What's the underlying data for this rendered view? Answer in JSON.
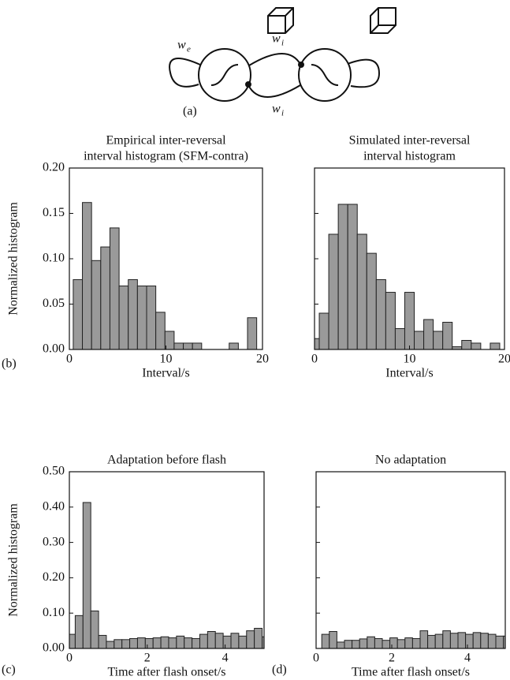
{
  "diagram": {
    "we_base": "w",
    "we_sub": "e",
    "wi_top_base": "w",
    "wi_top_sub": "i",
    "wi_bottom_base": "w",
    "wi_bottom_sub": "i"
  },
  "panel_labels": {
    "a": "(a)",
    "b": "(b)",
    "c": "(c)",
    "d": "(d)"
  },
  "chart_data": [
    {
      "type": "histogram",
      "title": [
        "Empirical inter-reversal",
        "interval histogram (SFM-contra)"
      ],
      "xlabel": "Interval/s",
      "ylabel": "Normalized histogram",
      "bins": [
        0.4,
        1.35,
        2.3,
        3.25,
        4.2,
        5.15,
        6.1,
        7.05,
        8,
        8.95,
        9.9,
        10.85,
        11.8,
        12.75,
        13.7,
        14.65,
        15.6,
        16.55,
        17.5,
        18.45,
        19.4
      ],
      "values": [
        0.077,
        0.162,
        0.098,
        0.113,
        0.134,
        0.07,
        0.077,
        0.07,
        0.07,
        0.041,
        0.02,
        0.007,
        0.007,
        0.007,
        0,
        0,
        0,
        0.007,
        0,
        0.035
      ],
      "color": "#9a9a9a",
      "xlim": [
        0,
        20
      ],
      "ylim": [
        0,
        0.2
      ],
      "xticks": [
        0,
        10,
        20
      ],
      "yticks": [
        {
          "value": 0,
          "label": "0.00"
        },
        {
          "value": 0.05,
          "label": "0.05"
        },
        {
          "value": 0.1,
          "label": "0.10"
        },
        {
          "value": 0.15,
          "label": "0.15"
        },
        {
          "value": 0.2,
          "label": "0.20"
        }
      ],
      "ytick_labels": true
    },
    {
      "type": "histogram",
      "title": [
        "Simulated inter-reversal",
        "interval histogram"
      ],
      "xlabel": "Interval/s",
      "bins": [
        0,
        0.5,
        1.5,
        2.5,
        3.5,
        4.5,
        5.5,
        6.5,
        7.5,
        8.5,
        9.5,
        10.5,
        11.5,
        12.5,
        13.5,
        14.5,
        15.5,
        16.5,
        17.5,
        18.5,
        19.5
      ],
      "values": [
        0.012,
        0.04,
        0.127,
        0.16,
        0.16,
        0.127,
        0.106,
        0.077,
        0.063,
        0.023,
        0.063,
        0.02,
        0.033,
        0.02,
        0.03,
        0.003,
        0.01,
        0.007,
        0,
        0.007
      ],
      "color": "#9a9a9a",
      "xlim": [
        0,
        20
      ],
      "ylim": [
        0,
        0.2
      ],
      "xticks": [
        0,
        10,
        20
      ],
      "yticks": [
        0,
        0.05,
        0.1,
        0.15,
        0.2
      ],
      "ytick_labels": false
    },
    {
      "type": "histogram",
      "title": [
        "Adaptation before flash"
      ],
      "xlabel": "Time after flash onset/s",
      "ylabel": "Normalized histogram",
      "bins": [
        0,
        0.15,
        0.35,
        0.55,
        0.75,
        0.95,
        1.15,
        1.35,
        1.55,
        1.75,
        1.95,
        2.15,
        2.35,
        2.55,
        2.75,
        2.95,
        3.15,
        3.35,
        3.55,
        3.75,
        3.95,
        4.15,
        4.35,
        4.55,
        4.75,
        4.95,
        5
      ],
      "values": [
        0.04,
        0.093,
        0.413,
        0.106,
        0.037,
        0.02,
        0.025,
        0.025,
        0.028,
        0.03,
        0.028,
        0.03,
        0.033,
        0.03,
        0.035,
        0.03,
        0.028,
        0.04,
        0.048,
        0.043,
        0.035,
        0.043,
        0.035,
        0.05,
        0.057,
        0.033
      ],
      "color": "#9a9a9a",
      "xlim": [
        0,
        5
      ],
      "ylim": [
        0,
        0.5
      ],
      "xticks": [
        0,
        2,
        4
      ],
      "yticks": [
        {
          "value": 0,
          "label": "0.00"
        },
        {
          "value": 0.1,
          "label": "0.10"
        },
        {
          "value": 0.2,
          "label": "0.20"
        },
        {
          "value": 0.3,
          "label": "0.30"
        },
        {
          "value": 0.4,
          "label": "0.40"
        },
        {
          "value": 0.5,
          "label": "0.50"
        }
      ],
      "ytick_labels": true
    },
    {
      "type": "histogram",
      "title": [
        "No adaptation"
      ],
      "xlabel": "Time after flash onset/s",
      "bins": [
        0,
        0.15,
        0.35,
        0.55,
        0.75,
        0.95,
        1.15,
        1.35,
        1.55,
        1.75,
        1.95,
        2.15,
        2.35,
        2.55,
        2.75,
        2.95,
        3.15,
        3.35,
        3.55,
        3.75,
        3.95,
        4.15,
        4.35,
        4.55,
        4.75,
        4.95,
        5
      ],
      "values": [
        0,
        0.04,
        0.048,
        0.018,
        0.023,
        0.023,
        0.027,
        0.033,
        0.028,
        0.023,
        0.03,
        0.025,
        0.03,
        0.028,
        0.05,
        0.037,
        0.04,
        0.05,
        0.043,
        0.045,
        0.04,
        0.045,
        0.043,
        0.04,
        0.035,
        0.035
      ],
      "color": "#9a9a9a",
      "xlim": [
        0,
        5
      ],
      "ylim": [
        0,
        0.5
      ],
      "xticks": [
        0,
        2,
        4
      ],
      "yticks": [
        0,
        0.1,
        0.2,
        0.3,
        0.4,
        0.5
      ],
      "ytick_labels": false
    }
  ]
}
